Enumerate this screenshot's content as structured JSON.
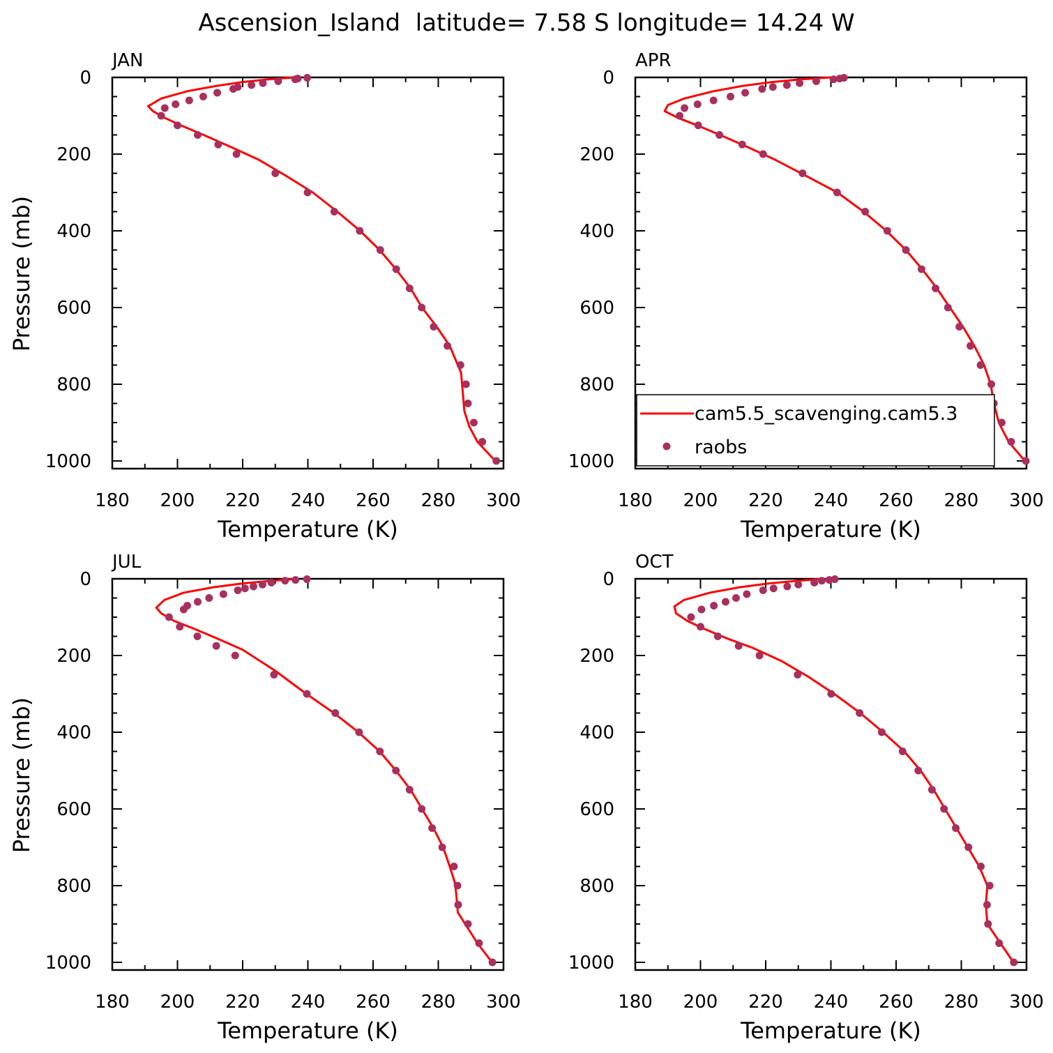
{
  "title": "Ascension_Island  latitude= 7.58 S longitude= 14.24 W",
  "colors": {
    "model": "#ff0000",
    "obs": "#a8305f",
    "axis": "#000000"
  },
  "legend": {
    "model_label": "cam5.5_scavenging.cam5.3",
    "obs_label": "raobs",
    "placement": "inside APR panel, lower-left"
  },
  "chart_data": [
    {
      "type": "line",
      "panel": "JAN",
      "xlabel": "Temperature (K)",
      "ylabel": "Pressure (mb)",
      "xlim": [
        180,
        300
      ],
      "ylim": [
        1020,
        0
      ],
      "xticks": [
        "180",
        "200",
        "220",
        "240",
        "260",
        "280",
        "300"
      ],
      "yticks": [
        "0",
        "200",
        "400",
        "600",
        "800",
        "1000"
      ],
      "series": [
        {
          "name": "cam5.5_scavenging.cam5.3",
          "kind": "line",
          "x": [
            236.0,
            228.0,
            220.0,
            212.0,
            203.0,
            195.0,
            191.0,
            192.5,
            196.0,
            201.0,
            208.0,
            216.0,
            225.0,
            233.0,
            241.5,
            249.0,
            256.0,
            262.0,
            267.0,
            271.5,
            275.0,
            279.5,
            283.5,
            287.0,
            287.5,
            288.0,
            289.5,
            292.0,
            297.5
          ],
          "y": [
            0,
            5,
            12,
            22,
            36,
            55,
            75,
            88,
            105,
            125,
            150,
            180,
            215,
            255,
            300,
            350,
            400,
            450,
            500,
            550,
            600,
            650,
            700,
            770,
            820,
            870,
            910,
            950,
            1000
          ]
        },
        {
          "name": "raobs",
          "kind": "scatter",
          "x": [
            239.8,
            236.9,
            236.1,
            230.9,
            226.2,
            222.7,
            218.5,
            217.1,
            212.2,
            207.9,
            203.6,
            199.4,
            196.1,
            195.0,
            200.0,
            206.2,
            212.5,
            218.1,
            230.0,
            239.9,
            248.1,
            255.9,
            262.2,
            267.1,
            271.2,
            274.9,
            278.6,
            282.8,
            286.8,
            288.5,
            289.1,
            290.9,
            293.5,
            297.8
          ],
          "y": [
            1,
            3,
            5,
            10,
            15,
            20,
            25,
            30,
            40,
            50,
            60,
            70,
            80,
            100,
            125,
            150,
            175,
            200,
            250,
            300,
            350,
            400,
            450,
            500,
            550,
            600,
            650,
            700,
            750,
            800,
            850,
            900,
            950,
            1000
          ]
        }
      ]
    },
    {
      "type": "line",
      "panel": "APR",
      "xlabel": "Temperature (K)",
      "ylabel": "",
      "xlim": [
        180,
        300
      ],
      "ylim": [
        1020,
        0
      ],
      "xticks": [
        "180",
        "200",
        "220",
        "240",
        "260",
        "280",
        "300"
      ],
      "yticks": [
        "0",
        "200",
        "400",
        "600",
        "800",
        "1000"
      ],
      "series": [
        {
          "name": "cam5.5_scavenging.cam5.3",
          "kind": "line",
          "x": [
            240.0,
            231.0,
            222.0,
            213.0,
            204.0,
            195.0,
            190.0,
            189.0,
            193.0,
            199.0,
            206.0,
            214.0,
            223.0,
            232.0,
            242.0,
            250.0,
            257.0,
            263.0,
            268.0,
            272.5,
            276.5,
            280.5,
            284.0,
            287.0,
            289.0,
            290.0,
            291.5,
            294.5,
            299.5
          ],
          "y": [
            0,
            5,
            12,
            22,
            36,
            55,
            72,
            88,
            105,
            125,
            150,
            180,
            215,
            255,
            300,
            350,
            400,
            450,
            500,
            550,
            600,
            650,
            700,
            750,
            800,
            850,
            900,
            950,
            1000
          ]
        },
        {
          "name": "raobs",
          "kind": "scatter",
          "x": [
            244.0,
            242.7,
            240.8,
            235.5,
            230.4,
            226.5,
            222.2,
            218.9,
            213.7,
            209.2,
            204.0,
            199.1,
            195.1,
            193.6,
            199.3,
            205.8,
            212.8,
            219.2,
            231.3,
            241.9,
            250.5,
            257.3,
            263.0,
            267.8,
            272.1,
            275.9,
            279.4,
            282.8,
            285.9,
            289.2,
            290.0,
            292.4,
            295.3,
            299.8
          ],
          "y": [
            1,
            3,
            5,
            10,
            15,
            20,
            25,
            30,
            40,
            50,
            60,
            70,
            80,
            100,
            125,
            150,
            175,
            200,
            250,
            300,
            350,
            400,
            450,
            500,
            550,
            600,
            650,
            700,
            750,
            800,
            850,
            900,
            950,
            1000
          ]
        }
      ]
    },
    {
      "type": "line",
      "panel": "JUL",
      "xlabel": "Temperature (K)",
      "ylabel": "Pressure (mb)",
      "xlim": [
        180,
        300
      ],
      "ylim": [
        1020,
        0
      ],
      "xticks": [
        "180",
        "200",
        "220",
        "240",
        "260",
        "280",
        "300"
      ],
      "yticks": [
        "0",
        "200",
        "400",
        "600",
        "800",
        "1000"
      ],
      "series": [
        {
          "name": "cam5.5_scavenging.cam5.3",
          "kind": "line",
          "x": [
            237.0,
            229.0,
            220.0,
            211.0,
            202.0,
            196.0,
            193.5,
            195.0,
            199.0,
            205.0,
            212.0,
            220.0,
            230.0,
            239.5,
            248.0,
            255.5,
            262.0,
            267.0,
            271.5,
            275.0,
            278.5,
            281.5,
            283.5,
            285.0,
            285.5,
            286.0,
            289.0,
            292.0,
            296.5
          ],
          "y": [
            0,
            5,
            12,
            22,
            36,
            55,
            75,
            90,
            110,
            130,
            155,
            185,
            240,
            300,
            350,
            400,
            450,
            500,
            550,
            600,
            650,
            700,
            750,
            790,
            820,
            870,
            910,
            950,
            1000
          ]
        },
        {
          "name": "raobs",
          "kind": "scatter",
          "x": [
            239.7,
            236.2,
            233.0,
            228.8,
            226.1,
            223.3,
            220.7,
            218.5,
            214.1,
            209.7,
            206.2,
            203.0,
            201.9,
            197.4,
            200.7,
            206.1,
            211.9,
            217.7,
            229.6,
            239.7,
            248.4,
            255.7,
            262.1,
            267.0,
            271.2,
            274.9,
            278.1,
            281.2,
            284.8,
            285.9,
            286.1,
            289.1,
            292.5,
            296.6
          ],
          "y": [
            1,
            3,
            5,
            10,
            15,
            20,
            25,
            30,
            40,
            50,
            60,
            70,
            80,
            100,
            125,
            150,
            175,
            200,
            250,
            300,
            350,
            400,
            450,
            500,
            550,
            600,
            650,
            700,
            750,
            800,
            850,
            900,
            950,
            1000
          ]
        }
      ]
    },
    {
      "type": "line",
      "panel": "OCT",
      "xlabel": "Temperature (K)",
      "ylabel": "",
      "xlim": [
        180,
        300
      ],
      "ylim": [
        1020,
        0
      ],
      "xticks": [
        "180",
        "200",
        "220",
        "240",
        "260",
        "280",
        "300"
      ],
      "yticks": [
        "0",
        "200",
        "400",
        "600",
        "800",
        "1000"
      ],
      "series": [
        {
          "name": "cam5.5_scavenging.cam5.3",
          "kind": "line",
          "x": [
            238.0,
            230.0,
            221.0,
            212.0,
            203.0,
            195.0,
            192.0,
            192.5,
            196.0,
            201.0,
            208.0,
            216.0,
            225.0,
            233.0,
            241.0,
            249.0,
            256.0,
            262.5,
            267.5,
            271.5,
            275.0,
            278.5,
            282.0,
            285.5,
            288.0,
            287.5,
            288.0,
            292.0,
            296.0
          ],
          "y": [
            0,
            5,
            12,
            22,
            36,
            55,
            72,
            90,
            110,
            130,
            155,
            180,
            215,
            255,
            300,
            350,
            400,
            450,
            500,
            550,
            600,
            650,
            700,
            750,
            800,
            850,
            900,
            950,
            1000
          ]
        },
        {
          "name": "raobs",
          "kind": "scatter",
          "x": [
            241.2,
            239.5,
            237.2,
            234.9,
            230.0,
            226.6,
            222.4,
            219.2,
            214.2,
            210.9,
            207.7,
            204.1,
            200.3,
            197.1,
            200.0,
            205.3,
            211.7,
            218.1,
            229.8,
            240.1,
            248.8,
            255.6,
            262.0,
            266.8,
            271.0,
            274.7,
            278.3,
            282.2,
            286.0,
            288.7,
            287.9,
            288.2,
            291.6,
            296.1
          ],
          "y": [
            1,
            3,
            5,
            10,
            15,
            20,
            25,
            30,
            40,
            50,
            60,
            70,
            80,
            100,
            125,
            150,
            175,
            200,
            250,
            300,
            350,
            400,
            450,
            500,
            550,
            600,
            650,
            700,
            750,
            800,
            850,
            900,
            950,
            1000
          ]
        }
      ]
    }
  ]
}
